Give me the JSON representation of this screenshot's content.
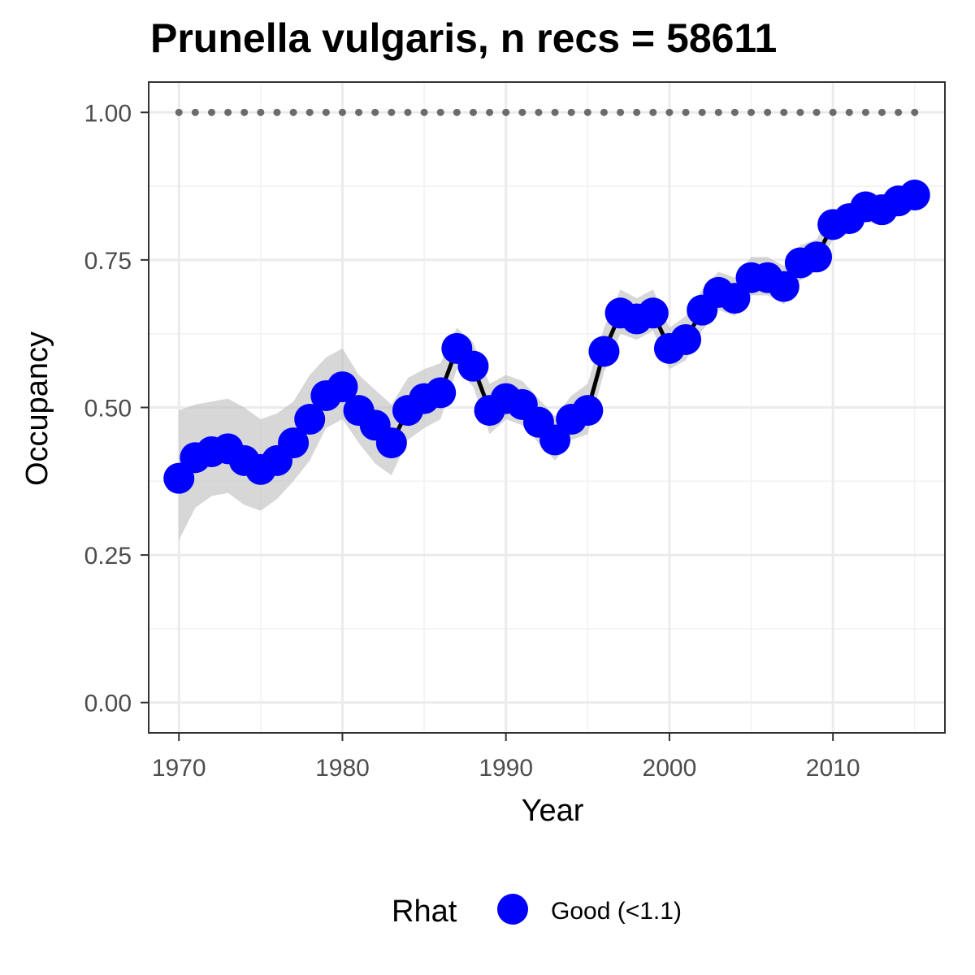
{
  "chart_data": {
    "type": "line",
    "title": "Prunella vulgaris, n recs = 58611",
    "xlabel": "Year",
    "ylabel": "Occupancy",
    "xlim": [
      1968.2,
      2016.8
    ],
    "ylim": [
      -0.05,
      1.05
    ],
    "x_ticks": [
      1970,
      1980,
      1990,
      2000,
      2010
    ],
    "x_tick_labels": [
      "1970",
      "1980",
      "1990",
      "2000",
      "2010"
    ],
    "y_ticks": [
      0,
      0.25,
      0.5,
      0.75,
      1
    ],
    "y_tick_labels": [
      "0.00",
      "0.25",
      "0.50",
      "0.75",
      "1.00"
    ],
    "grid": true,
    "reference_line": {
      "y": 1.0,
      "style": "dotted",
      "color": "#6b6b6b"
    },
    "x": [
      1970,
      1971,
      1972,
      1973,
      1974,
      1975,
      1976,
      1977,
      1978,
      1979,
      1980,
      1981,
      1982,
      1983,
      1984,
      1985,
      1986,
      1987,
      1988,
      1989,
      1990,
      1991,
      1992,
      1993,
      1994,
      1995,
      1996,
      1997,
      1998,
      1999,
      2000,
      2001,
      2002,
      2003,
      2004,
      2005,
      2006,
      2007,
      2008,
      2009,
      2010,
      2011,
      2012,
      2013,
      2014,
      2015
    ],
    "series": [
      {
        "name": "Good (<1.1)",
        "color": "#0000ff",
        "line_color": "#000000",
        "values": [
          0.38,
          0.415,
          0.425,
          0.43,
          0.41,
          0.395,
          0.41,
          0.44,
          0.48,
          0.52,
          0.535,
          0.495,
          0.47,
          0.44,
          0.495,
          0.515,
          0.525,
          0.6,
          0.57,
          0.495,
          0.515,
          0.505,
          0.475,
          0.445,
          0.48,
          0.495,
          0.595,
          0.66,
          0.65,
          0.66,
          0.6,
          0.615,
          0.665,
          0.695,
          0.685,
          0.72,
          0.72,
          0.705,
          0.745,
          0.755,
          0.81,
          0.82,
          0.84,
          0.835,
          0.85,
          0.86
        ],
        "lower": [
          0.275,
          0.33,
          0.35,
          0.355,
          0.335,
          0.325,
          0.345,
          0.375,
          0.41,
          0.465,
          0.48,
          0.44,
          0.405,
          0.385,
          0.445,
          0.465,
          0.48,
          0.565,
          0.535,
          0.455,
          0.48,
          0.47,
          0.44,
          0.41,
          0.445,
          0.455,
          0.56,
          0.625,
          0.615,
          0.63,
          0.565,
          0.58,
          0.63,
          0.665,
          0.655,
          0.69,
          0.69,
          0.675,
          0.715,
          0.73,
          0.785,
          0.795,
          0.815,
          0.81,
          0.825,
          0.84
        ],
        "upper": [
          0.495,
          0.505,
          0.51,
          0.515,
          0.5,
          0.48,
          0.49,
          0.51,
          0.555,
          0.585,
          0.6,
          0.555,
          0.53,
          0.505,
          0.55,
          0.565,
          0.575,
          0.635,
          0.61,
          0.54,
          0.555,
          0.545,
          0.515,
          0.485,
          0.52,
          0.54,
          0.635,
          0.7,
          0.685,
          0.7,
          0.635,
          0.655,
          0.7,
          0.73,
          0.72,
          0.755,
          0.755,
          0.74,
          0.775,
          0.785,
          0.835,
          0.845,
          0.865,
          0.86,
          0.875,
          0.88
        ]
      }
    ],
    "band_color": "#bdbdbd",
    "legend": {
      "title": "Rhat",
      "placement": "bottom",
      "entries": [
        "Good (<1.1)"
      ]
    }
  }
}
